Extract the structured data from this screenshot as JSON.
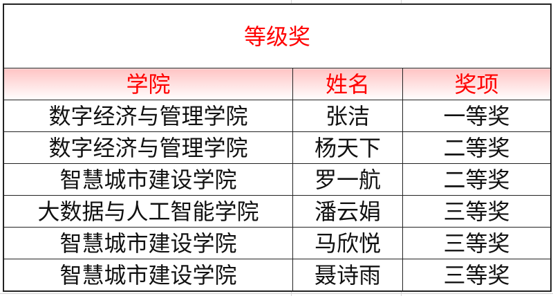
{
  "title": "等级奖",
  "headers": [
    "学院",
    "姓名",
    "奖项"
  ],
  "rows": [
    [
      "数字经济与管理学院",
      "张洁",
      "一等奖"
    ],
    [
      "数字经济与管理学院",
      "杨天下",
      "二等奖"
    ],
    [
      "智慧城市建设学院",
      "罗一航",
      "二等奖"
    ],
    [
      "大数据与人工智能学院",
      "潘云娟",
      "三等奖"
    ],
    [
      "智慧城市建设学院",
      "马欣悦",
      "三等奖"
    ],
    [
      "智慧城市建设学院",
      "聂诗雨",
      "三等奖"
    ]
  ],
  "colors": {
    "title": "#ff0000",
    "header_text": "#ff0000",
    "header_fill": "#ffc4c4"
  }
}
